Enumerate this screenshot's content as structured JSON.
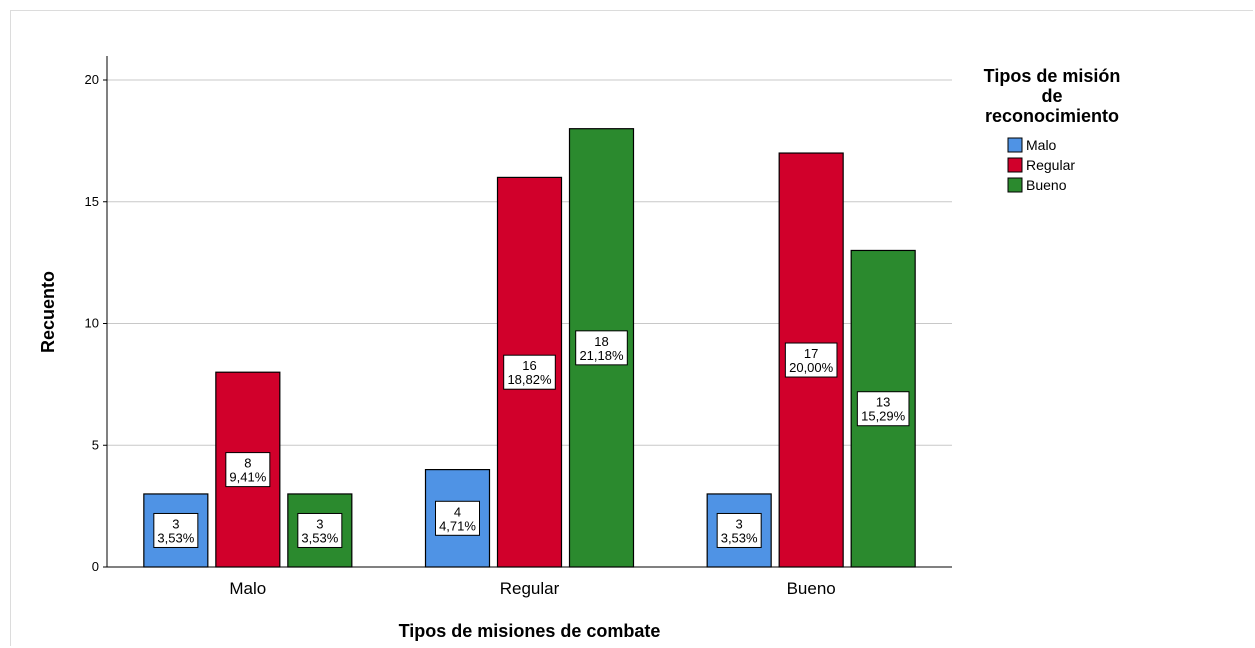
{
  "chart_data": {
    "type": "bar",
    "categories": [
      "Malo",
      "Regular",
      "Bueno"
    ],
    "series": [
      {
        "name": "Malo",
        "color": "#4f93e5",
        "values": [
          3,
          4,
          3
        ],
        "labels": [
          "3,53%",
          "4,71%",
          "3,53%"
        ]
      },
      {
        "name": "Regular",
        "color": "#d1002b",
        "values": [
          8,
          16,
          17
        ],
        "labels": [
          "9,41%",
          "18,82%",
          "20,00%"
        ]
      },
      {
        "name": "Bueno",
        "color": "#2b8a2e",
        "values": [
          3,
          18,
          13
        ],
        "labels": [
          "3,53%",
          "21,18%",
          "15,29%"
        ]
      }
    ],
    "xlabel": "Tipos de misiones de combate",
    "ylabel": "Recuento",
    "ylim": [
      0,
      20
    ],
    "yticks": [
      0,
      5,
      10,
      15,
      20
    ],
    "grid": true,
    "legend": {
      "title_lines": [
        "Tipos de misión",
        "de",
        "reconocimiento"
      ],
      "position": "top-right"
    }
  }
}
